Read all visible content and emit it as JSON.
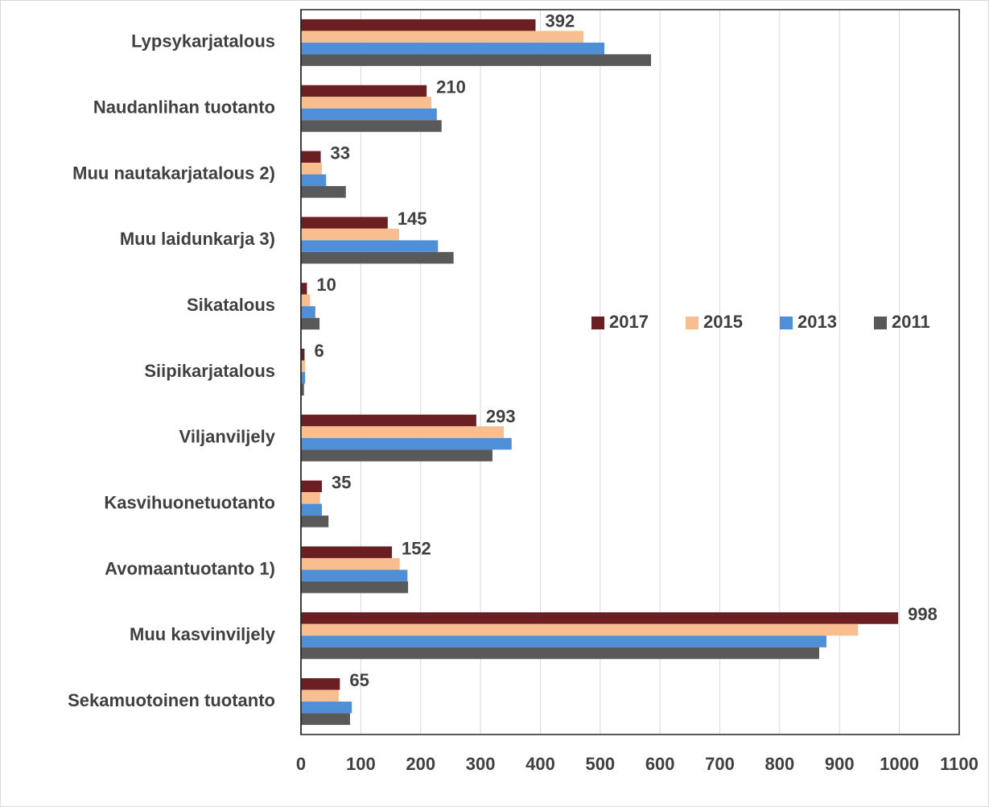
{
  "chart_data": {
    "type": "bar",
    "orientation": "horizontal",
    "categories": [
      "Lypsykarjatalous",
      "Naudanlihan tuotanto",
      "Muu nautakarjatalous 2)",
      "Muu laidunkarja 3)",
      "Sikatalous",
      "Siipikarjatalous",
      "Viljanviljely",
      "Kasvihuonetuotanto",
      "Avomaantuotanto 1)",
      "Muu kasvinviljely",
      "Sekamuotoinen tuotanto"
    ],
    "series": [
      {
        "name": "2017",
        "color": "#6b1f22",
        "values": [
          392,
          210,
          33,
          145,
          10,
          6,
          293,
          35,
          152,
          998,
          65
        ]
      },
      {
        "name": "2015",
        "color": "#f8be8f",
        "values": [
          472,
          218,
          35,
          164,
          15,
          7,
          339,
          32,
          165,
          931,
          63
        ]
      },
      {
        "name": "2013",
        "color": "#4f8fd8",
        "values": [
          507,
          227,
          42,
          229,
          24,
          7,
          352,
          35,
          178,
          878,
          85
        ]
      },
      {
        "name": "2011",
        "color": "#595959",
        "values": [
          585,
          235,
          75,
          255,
          31,
          5,
          320,
          46,
          179,
          866,
          82
        ]
      }
    ],
    "xlim": [
      0,
      1100
    ],
    "xticks": [
      0,
      100,
      200,
      300,
      400,
      500,
      600,
      700,
      800,
      900,
      1000,
      1100
    ],
    "grid": true,
    "legend": "right",
    "data_labels_series": 0
  }
}
